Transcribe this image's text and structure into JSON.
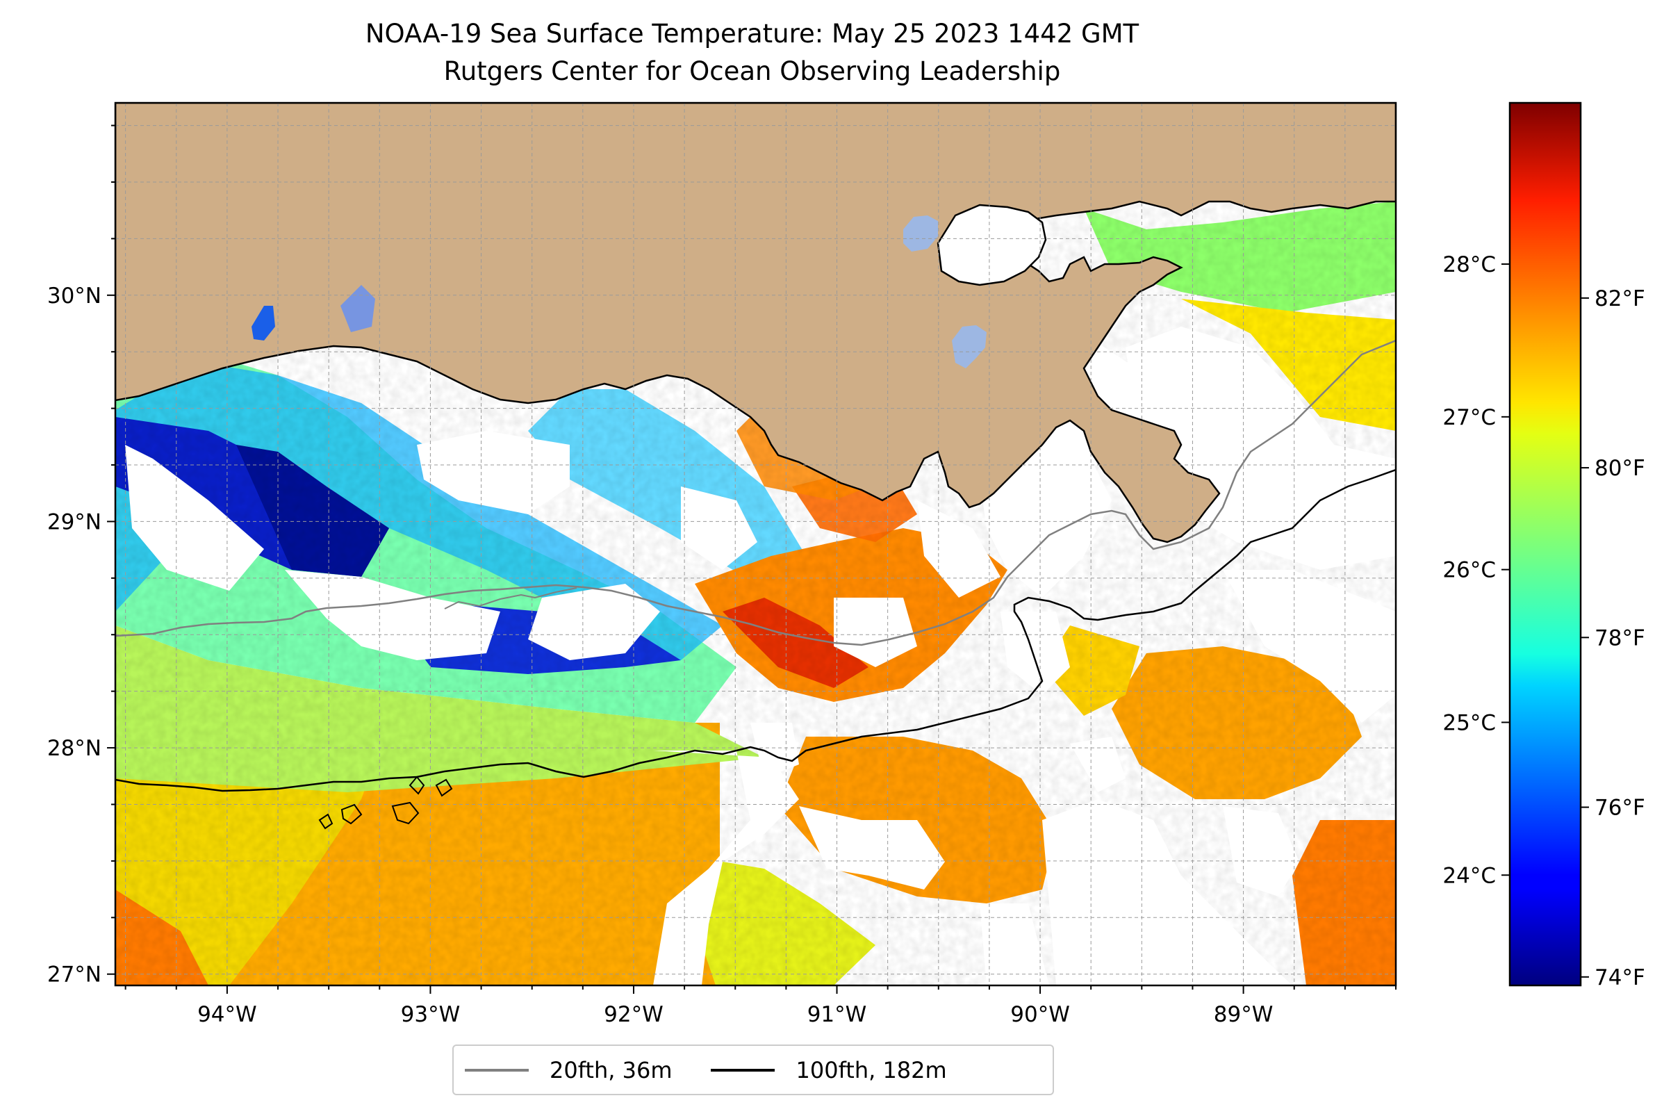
{
  "title": "NOAA-19 Sea Surface Temperature: May 25 2023 1442 GMT",
  "subtitle": "Rutgers Center for Ocean Observing Leadership",
  "map": {
    "lon_range": [
      -94.55,
      -88.25
    ],
    "lat_range": [
      26.95,
      30.85
    ],
    "lon_ticks": [
      {
        "value": -94,
        "label": "94°W"
      },
      {
        "value": -93,
        "label": "93°W"
      },
      {
        "value": -92,
        "label": "92°W"
      },
      {
        "value": -91,
        "label": "91°W"
      },
      {
        "value": -90,
        "label": "90°W"
      },
      {
        "value": -89,
        "label": "89°W"
      }
    ],
    "lat_ticks": [
      {
        "value": 27,
        "label": "27°N"
      },
      {
        "value": 28,
        "label": "28°N"
      },
      {
        "value": 29,
        "label": "29°N"
      },
      {
        "value": 30,
        "label": "30°N"
      }
    ],
    "gridlines": true,
    "land_color": "#cfae87",
    "lake_color": "#9db7e3",
    "no_data_color": "#ffffff",
    "colormap": "jet"
  },
  "colorbar": {
    "range_f": [
      73.9,
      84.3
    ],
    "celsius_ticks": [
      {
        "value": 24,
        "label": "24°C"
      },
      {
        "value": 25,
        "label": "25°C"
      },
      {
        "value": 26,
        "label": "26°C"
      },
      {
        "value": 27,
        "label": "27°C"
      },
      {
        "value": 28,
        "label": "28°C"
      }
    ],
    "fahrenheit_ticks": [
      {
        "value": 74,
        "label": "74°F"
      },
      {
        "value": 76,
        "label": "76°F"
      },
      {
        "value": 78,
        "label": "78°F"
      },
      {
        "value": 80,
        "label": "80°F"
      },
      {
        "value": 82,
        "label": "82°F"
      }
    ]
  },
  "legend": {
    "items": [
      {
        "label": "20fth, 36m",
        "color": "#808080"
      },
      {
        "label": "100fth, 182m",
        "color": "#000000"
      }
    ]
  }
}
